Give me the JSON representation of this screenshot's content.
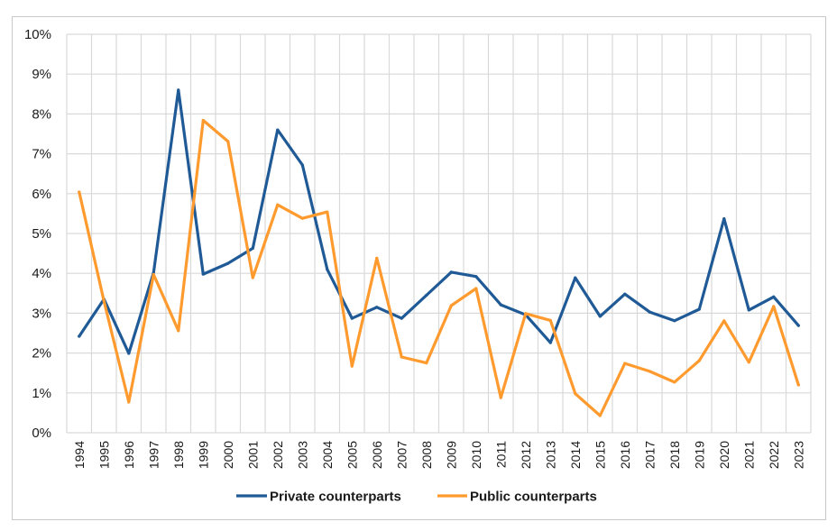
{
  "chart_data": {
    "type": "line",
    "title": "",
    "xlabel": "",
    "ylabel": "",
    "ylim": [
      0,
      10
    ],
    "y_ticks": [
      "0%",
      "1%",
      "2%",
      "3%",
      "4%",
      "5%",
      "6%",
      "7%",
      "8%",
      "9%",
      "10%"
    ],
    "grid": true,
    "legend_position": "bottom",
    "categories": [
      "1994",
      "1995",
      "1996",
      "1997",
      "1998",
      "1999",
      "2000",
      "2001",
      "2002",
      "2003",
      "2004",
      "2005",
      "2006",
      "2007",
      "2008",
      "2009",
      "2010",
      "2011",
      "2012",
      "2013",
      "2014",
      "2015",
      "2016",
      "2017",
      "2018",
      "2019",
      "2020",
      "2021",
      "2022",
      "2023"
    ],
    "series": [
      {
        "name": "Private counterparts",
        "color": "#1f5a96",
        "values": [
          2.42,
          3.35,
          1.99,
          4.02,
          8.6,
          3.98,
          4.25,
          4.63,
          7.6,
          6.72,
          4.1,
          2.87,
          3.15,
          2.87,
          3.45,
          4.03,
          3.92,
          3.21,
          2.96,
          2.26,
          3.89,
          2.92,
          3.48,
          3.03,
          2.81,
          3.1,
          5.37,
          3.08,
          3.41,
          2.69
        ]
      },
      {
        "name": "Public counterparts",
        "color": "#ff9a2e",
        "values": [
          6.04,
          3.3,
          0.77,
          3.97,
          2.56,
          7.84,
          7.31,
          3.89,
          5.72,
          5.38,
          5.54,
          1.67,
          4.38,
          1.9,
          1.75,
          3.19,
          3.62,
          0.88,
          2.99,
          2.82,
          0.98,
          0.43,
          1.74,
          1.54,
          1.27,
          1.81,
          2.81,
          1.77,
          3.17,
          1.2
        ]
      }
    ]
  }
}
